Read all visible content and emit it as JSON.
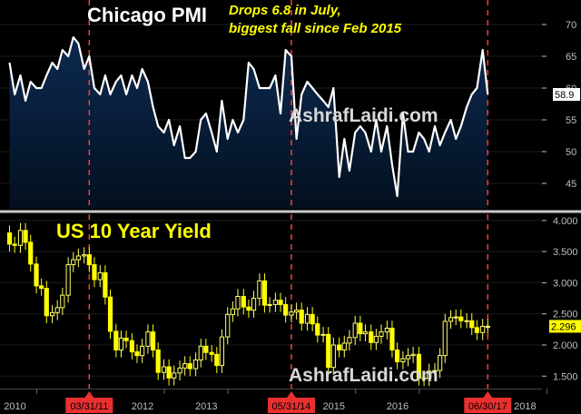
{
  "chart_data": [
    {
      "type": "line",
      "title": "Chicago PMI",
      "annotation": [
        "Drops 6.8 in July,",
        "biggest fall since Feb 2015"
      ],
      "watermark": "AshrafLaidi.com",
      "last_value_label": "58.9",
      "ylim": [
        41,
        73
      ],
      "yticks": [
        45,
        50,
        55,
        60,
        65,
        70
      ],
      "x": [
        2010.0,
        2010.08,
        2010.17,
        2010.25,
        2010.33,
        2010.42,
        2010.5,
        2010.58,
        2010.67,
        2010.75,
        2010.83,
        2010.92,
        2011.0,
        2011.08,
        2011.17,
        2011.25,
        2011.33,
        2011.42,
        2011.5,
        2011.58,
        2011.67,
        2011.75,
        2011.83,
        2011.92,
        2012.0,
        2012.08,
        2012.17,
        2012.25,
        2012.33,
        2012.42,
        2012.5,
        2012.58,
        2012.67,
        2012.75,
        2012.83,
        2012.92,
        2013.0,
        2013.08,
        2013.17,
        2013.25,
        2013.33,
        2013.42,
        2013.5,
        2013.58,
        2013.67,
        2013.75,
        2013.83,
        2013.92,
        2014.0,
        2014.08,
        2014.17,
        2014.25,
        2014.33,
        2014.42,
        2014.5,
        2014.58,
        2014.67,
        2014.75,
        2014.83,
        2014.92,
        2015.0,
        2015.08,
        2015.17,
        2015.25,
        2015.33,
        2015.42,
        2015.5,
        2015.58,
        2015.67,
        2015.75,
        2015.83,
        2015.92,
        2016.0,
        2016.08,
        2016.17,
        2016.25,
        2016.33,
        2016.42,
        2016.5,
        2016.58,
        2016.67,
        2016.75,
        2016.83,
        2016.92,
        2017.0,
        2017.08,
        2017.17,
        2017.25,
        2017.33,
        2017.42,
        2017.5
      ],
      "values": [
        64,
        59,
        62,
        58,
        61,
        60,
        60,
        62,
        64,
        63,
        66,
        65,
        68,
        67,
        63,
        65,
        60,
        59,
        62,
        59,
        61,
        62,
        59,
        62,
        60,
        63,
        61,
        57,
        54,
        53,
        55,
        51,
        54,
        49,
        49,
        50,
        55,
        56,
        53,
        50,
        58,
        52,
        55,
        53,
        55,
        64,
        63,
        60,
        60,
        60,
        62,
        56,
        66,
        65,
        52,
        59,
        61,
        60,
        59,
        58,
        57,
        60,
        46,
        52,
        47,
        53,
        54,
        53,
        50,
        55,
        50,
        54,
        48,
        43,
        56,
        50,
        50,
        53,
        52,
        50,
        54,
        51,
        53,
        55,
        52,
        54,
        57,
        59,
        60,
        66,
        59
      ],
      "event_lines_x": [
        2011.25,
        2014.42,
        2017.5
      ]
    },
    {
      "type": "candlestick",
      "title": "US 10 Year Yield",
      "watermark": "AshrafLaidi.com",
      "last_value_label": "2.296",
      "ylim": [
        1.3,
        4.1
      ],
      "yticks": [
        "1.500",
        "2.000",
        "2.500",
        "3.000",
        "3.500",
        "4.000"
      ],
      "ytick_values": [
        1.5,
        2.0,
        2.5,
        3.0,
        3.5,
        4.0
      ],
      "x": [
        2010.0,
        2010.08,
        2010.17,
        2010.25,
        2010.33,
        2010.42,
        2010.5,
        2010.58,
        2010.67,
        2010.75,
        2010.83,
        2010.92,
        2011.0,
        2011.08,
        2011.17,
        2011.25,
        2011.33,
        2011.42,
        2011.5,
        2011.58,
        2011.67,
        2011.75,
        2011.83,
        2011.92,
        2012.0,
        2012.08,
        2012.17,
        2012.25,
        2012.33,
        2012.42,
        2012.5,
        2012.58,
        2012.67,
        2012.75,
        2012.83,
        2012.92,
        2013.0,
        2013.08,
        2013.17,
        2013.25,
        2013.33,
        2013.42,
        2013.5,
        2013.58,
        2013.67,
        2013.75,
        2013.83,
        2013.92,
        2014.0,
        2014.08,
        2014.17,
        2014.25,
        2014.33,
        2014.42,
        2014.5,
        2014.58,
        2014.67,
        2014.75,
        2014.83,
        2014.92,
        2015.0,
        2015.08,
        2015.17,
        2015.25,
        2015.33,
        2015.42,
        2015.5,
        2015.58,
        2015.67,
        2015.75,
        2015.83,
        2015.92,
        2016.0,
        2016.08,
        2016.17,
        2016.25,
        2016.33,
        2016.42,
        2016.5,
        2016.58,
        2016.67,
        2016.75,
        2016.83,
        2016.92,
        2017.0,
        2017.08,
        2017.17,
        2017.25,
        2017.33,
        2017.42,
        2017.5
      ],
      "open": [
        3.8,
        3.62,
        3.6,
        3.84,
        3.65,
        3.3,
        2.95,
        2.91,
        2.47,
        2.52,
        2.6,
        2.8,
        3.29,
        3.37,
        3.43,
        3.45,
        3.29,
        3.05,
        3.16,
        2.77,
        2.22,
        1.92,
        2.11,
        2.07,
        1.89,
        1.83,
        1.98,
        2.21,
        1.92,
        1.56,
        1.65,
        1.47,
        1.55,
        1.63,
        1.7,
        1.62,
        1.76,
        1.98,
        1.88,
        1.85,
        1.67,
        2.13,
        2.49,
        2.58,
        2.78,
        2.61,
        2.56,
        2.75,
        3.03,
        2.64,
        2.65,
        2.72,
        2.65,
        2.48,
        2.53,
        2.56,
        2.35,
        2.49,
        2.34,
        2.16,
        2.17,
        1.64,
        2.0,
        1.92,
        2.03,
        2.12,
        2.35,
        2.18,
        2.21,
        2.04,
        2.14,
        2.21,
        2.27,
        1.92,
        1.73,
        1.78,
        1.83,
        1.85,
        1.47,
        1.46,
        1.58,
        1.59,
        1.83,
        2.38,
        2.44,
        2.45,
        2.39,
        2.39,
        2.28,
        2.2,
        2.3
      ],
      "close": [
        3.62,
        3.6,
        3.84,
        3.65,
        3.3,
        2.95,
        2.91,
        2.47,
        2.52,
        2.6,
        2.8,
        3.29,
        3.37,
        3.43,
        3.45,
        3.29,
        3.05,
        3.16,
        2.77,
        2.22,
        1.92,
        2.11,
        2.07,
        1.89,
        1.83,
        1.98,
        2.21,
        1.92,
        1.56,
        1.65,
        1.47,
        1.55,
        1.63,
        1.7,
        1.62,
        1.76,
        1.98,
        1.88,
        1.85,
        1.67,
        2.13,
        2.49,
        2.58,
        2.78,
        2.61,
        2.56,
        2.75,
        3.03,
        2.64,
        2.65,
        2.72,
        2.65,
        2.48,
        2.53,
        2.56,
        2.35,
        2.49,
        2.34,
        2.16,
        2.17,
        1.64,
        2.0,
        1.92,
        2.03,
        2.12,
        2.35,
        2.18,
        2.21,
        2.04,
        2.14,
        2.21,
        2.27,
        1.92,
        1.73,
        1.78,
        1.83,
        1.85,
        1.47,
        1.46,
        1.58,
        1.59,
        1.83,
        2.38,
        2.44,
        2.45,
        2.39,
        2.39,
        2.28,
        2.2,
        2.3,
        2.3
      ],
      "event_lines_x": [
        2011.25,
        2014.42,
        2017.5
      ]
    }
  ],
  "x_axis": {
    "range": [
      2009.85,
      2018.35
    ],
    "ticks": [
      {
        "label": "2010",
        "x": 2010.0,
        "highlight": false
      },
      {
        "label": "03/31/11",
        "x": 2011.25,
        "highlight": true
      },
      {
        "label": "2012",
        "x": 2012.0,
        "highlight": false
      },
      {
        "label": "2013",
        "x": 2013.0,
        "highlight": false
      },
      {
        "label": "05/31/14",
        "x": 2014.42,
        "highlight": true
      },
      {
        "label": "2015",
        "x": 2015.0,
        "highlight": false
      },
      {
        "label": "2016",
        "x": 2016.0,
        "highlight": false
      },
      {
        "label": "06/30/17",
        "x": 2017.5,
        "highlight": true
      },
      {
        "label": "2018",
        "x": 2018.0,
        "highlight": false
      }
    ]
  },
  "colors": {
    "background": "#000000",
    "pmi_fill_top": "#0d2a52",
    "pmi_fill_bottom": "#03101f",
    "pmi_line": "#ffffff",
    "candle_up": "#ffff66",
    "candle_down": "#ffff00",
    "event_line": "#ff3b3b",
    "highlight_label": "#e83030",
    "axis_text": "#bfbfbf",
    "divider": "#c8c8c8",
    "grid": "#1c1c1c"
  }
}
